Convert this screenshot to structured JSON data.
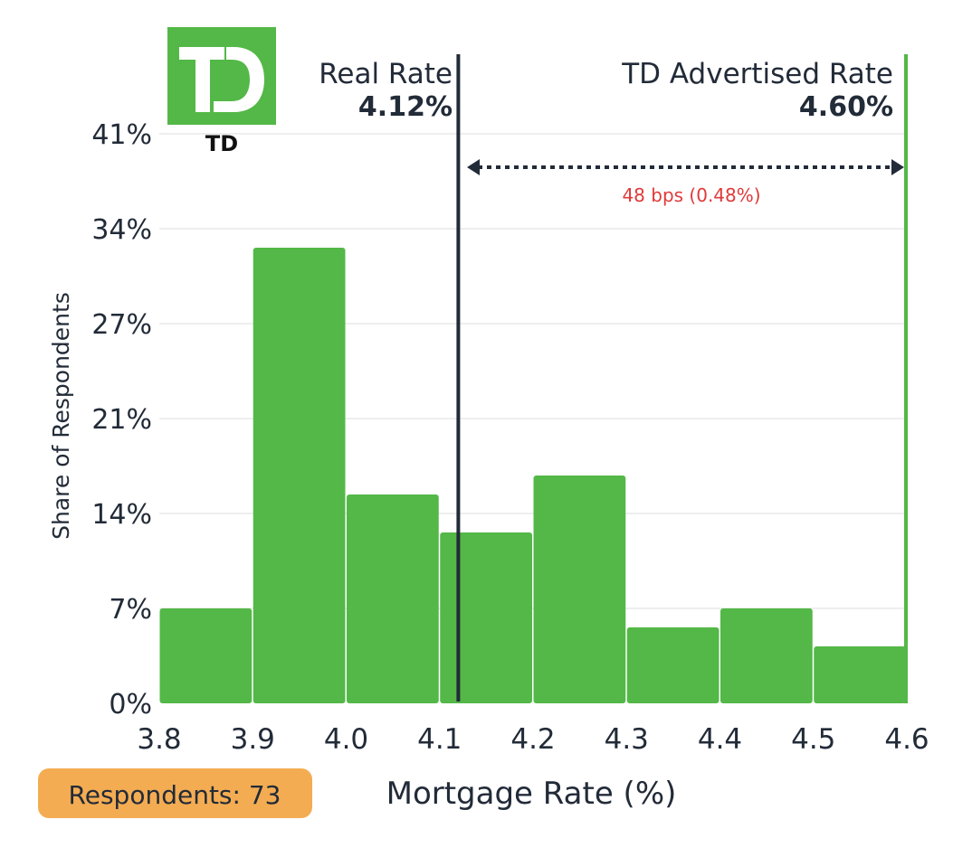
{
  "chart_data": {
    "type": "bar",
    "subtype": "histogram",
    "xlabel": "Mortgage Rate (%)",
    "ylabel": "Share of Respondents",
    "bin_edges": [
      3.8,
      3.9,
      4.0,
      4.1,
      4.2,
      4.3,
      4.4,
      4.5,
      4.6
    ],
    "values": [
      6.85,
      32.88,
      15.07,
      12.33,
      16.44,
      5.48,
      6.85,
      4.11
    ],
    "xlim": [
      3.8,
      4.6
    ],
    "ylim": [
      0,
      41.1
    ],
    "x_ticks": [
      {
        "value": 3.8,
        "label": "3.8"
      },
      {
        "value": 3.9,
        "label": "3.9"
      },
      {
        "value": 4.0,
        "label": "4.0"
      },
      {
        "value": 4.1,
        "label": "4.1"
      },
      {
        "value": 4.2,
        "label": "4.2"
      },
      {
        "value": 4.3,
        "label": "4.3"
      },
      {
        "value": 4.4,
        "label": "4.4"
      },
      {
        "value": 4.5,
        "label": "4.5"
      },
      {
        "value": 4.6,
        "label": "4.6"
      }
    ],
    "y_ticks": [
      {
        "value": 0,
        "label": "0%"
      },
      {
        "value": 6.85,
        "label": "7%"
      },
      {
        "value": 13.7,
        "label": "14%"
      },
      {
        "value": 20.55,
        "label": "21%"
      },
      {
        "value": 27.4,
        "label": "27%"
      },
      {
        "value": 34.25,
        "label": "34%"
      },
      {
        "value": 41.1,
        "label": "41%"
      }
    ],
    "grid": true,
    "bar_color": "#53b847",
    "reference_lines": {
      "real_rate": {
        "value": 4.12,
        "label": "Real Rate",
        "value_label": "4.12%",
        "color": "#222b38"
      },
      "advertised_rate": {
        "value": 4.6,
        "label": "TD Advertised Rate",
        "value_label": "4.60%",
        "color": "#53b847"
      }
    },
    "annotation": {
      "text": "48 bps (0.48%)",
      "color": "#e03a3a"
    },
    "respondents_badge": {
      "text": "Respondents: 73",
      "color": "#f4ac52"
    }
  },
  "logo": {
    "text": "TD",
    "caption": "TD",
    "color": "#53b847"
  }
}
